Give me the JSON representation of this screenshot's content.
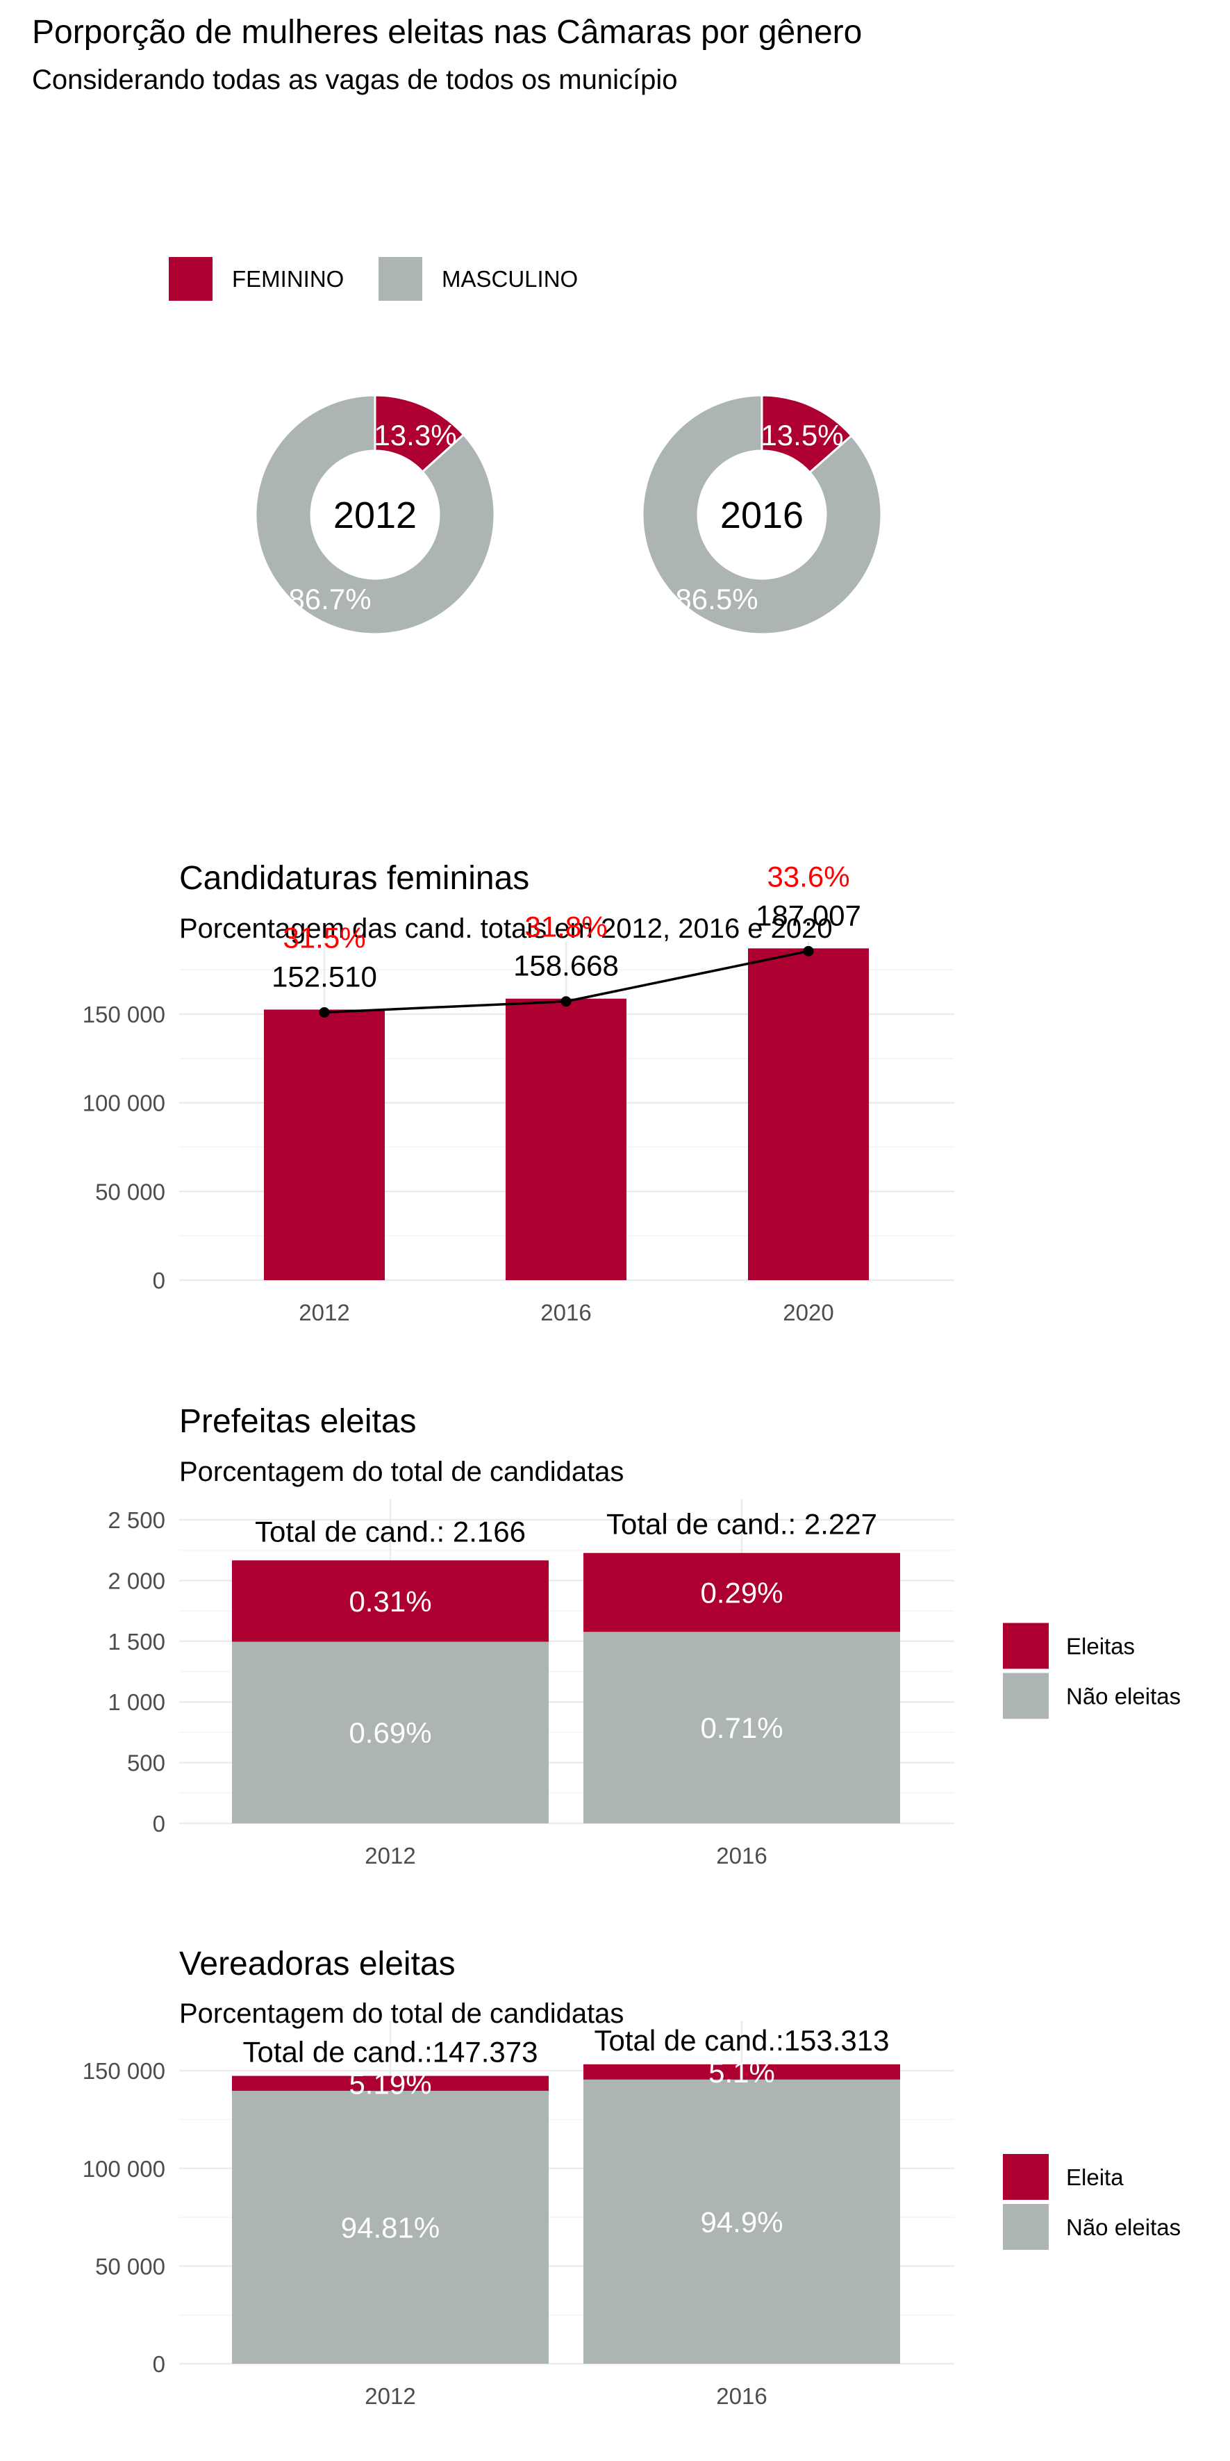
{
  "colors": {
    "female": "#AE0030",
    "male": "#ADB4B4",
    "pct_highlight": "#FF0000"
  },
  "chart_data": [
    {
      "type": "pie",
      "title": "Porporção de mulheres eleitas nas Câmaras por gênero",
      "subtitle": "Considerando todas as vagas de todos os município",
      "legend": {
        "position": "top-left",
        "entries": [
          "FEMININO",
          "MASCULINO"
        ]
      },
      "donuts": [
        {
          "year": "2012",
          "slices": [
            {
              "label": "FEMININO",
              "value": 13.3,
              "text": "13.3%"
            },
            {
              "label": "MASCULINO",
              "value": 86.7,
              "text": "86.7%"
            }
          ]
        },
        {
          "year": "2016",
          "slices": [
            {
              "label": "FEMININO",
              "value": 13.5,
              "text": "13.5%"
            },
            {
              "label": "MASCULINO",
              "value": 86.5,
              "text": "86.5%"
            }
          ]
        }
      ]
    },
    {
      "type": "bar",
      "title": "Candidaturas femininas",
      "subtitle": "Porcentagem das cand. totais em 2012, 2016 e 2020",
      "categories": [
        "2012",
        "2016",
        "2020"
      ],
      "values": [
        152510,
        158668,
        187007
      ],
      "value_labels": [
        "152.510",
        "158.668",
        "187.007"
      ],
      "pct_labels": [
        "31.5%",
        "31.8%",
        "33.6%"
      ],
      "overlay_line": true,
      "ylim": [
        0,
        175000
      ],
      "yticks": [
        0,
        50000,
        100000,
        150000
      ],
      "ytick_labels": [
        "0",
        "50 000",
        "100 000",
        "150 000"
      ],
      "grid": true
    },
    {
      "type": "bar",
      "stacked": true,
      "title": "Prefeitas eleitas",
      "subtitle": "Porcentagem do total de candidatas",
      "categories": [
        "2012",
        "2016"
      ],
      "series": [
        {
          "name": "Eleitas",
          "values": [
            670,
            650
          ],
          "labels": [
            "0.31%",
            "0.29%"
          ]
        },
        {
          "name": "Não eleitas",
          "values": [
            1496,
            1577
          ],
          "labels": [
            "0.69%",
            "0.71%"
          ]
        }
      ],
      "totals": [
        "Total de cand.: 2.166",
        "Total de cand.: 2.227"
      ],
      "legend_position": "right",
      "ylim": [
        0,
        2500
      ],
      "yticks": [
        0,
        500,
        1000,
        1500,
        2000,
        2500
      ],
      "ytick_labels": [
        "0",
        "500",
        "1 000",
        "1 500",
        "2 000",
        "2 500"
      ],
      "grid": true
    },
    {
      "type": "bar",
      "stacked": true,
      "title": "Vereadoras eleitas",
      "subtitle": "Porcentagem do total de candidatas",
      "categories": [
        "2012",
        "2016"
      ],
      "series": [
        {
          "name": "Eleita",
          "values": [
            7649,
            7819
          ],
          "labels": [
            "5.19%",
            "5.1%"
          ]
        },
        {
          "name": "Não eleitas",
          "values": [
            139724,
            145494
          ],
          "labels": [
            "94.81%",
            "94.9%"
          ]
        }
      ],
      "totals": [
        "Total de cand.:147.373",
        "Total de cand.:153.313"
      ],
      "legend_position": "right",
      "ylim": [
        0,
        165000
      ],
      "yticks": [
        0,
        50000,
        100000,
        150000
      ],
      "ytick_labels": [
        "0",
        "50 000",
        "100 000",
        "150 000"
      ],
      "grid": true
    }
  ]
}
